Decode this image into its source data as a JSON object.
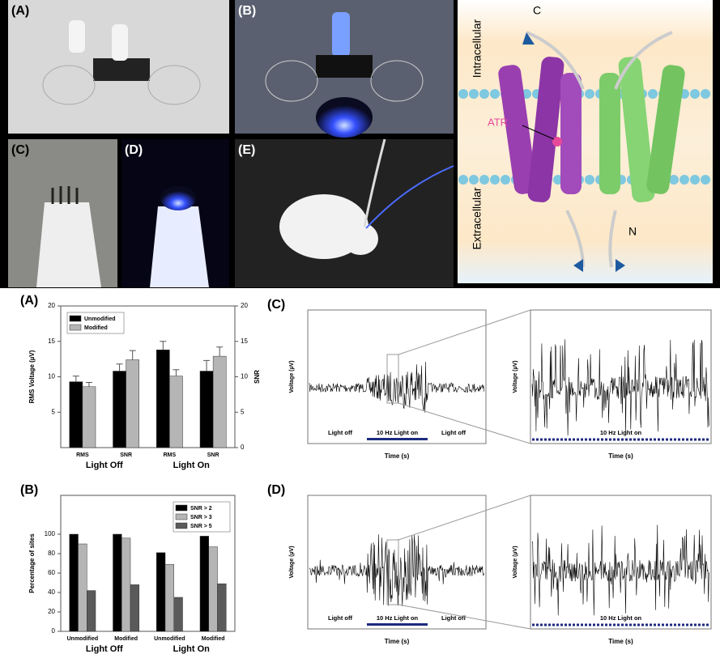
{
  "photos": {
    "labels": [
      "(A)",
      "(B)",
      "(C)",
      "(D)",
      "(E)"
    ]
  },
  "protein": {
    "c": "C",
    "intracellular": "Intracellular",
    "atr": "ATR",
    "extracellular": "Extracellular",
    "n": "N"
  },
  "chart_data": [
    {
      "type": "bar",
      "panel": "(A)",
      "ylabel": "RMS Voltage (µV)",
      "y2label": "SNR",
      "categories": [
        "RMS",
        "SNR",
        "RMS",
        "SNR"
      ],
      "groups": [
        "Light Off",
        "Light On"
      ],
      "series": [
        {
          "name": "Unmodified",
          "color": "#000000",
          "values": [
            9.3,
            10.8,
            13.8,
            10.8
          ],
          "errors": [
            0.8,
            1.0,
            1.2,
            1.5
          ]
        },
        {
          "name": "Modified",
          "color": "#b5b5b5",
          "values": [
            8.6,
            12.4,
            10.1,
            12.9
          ],
          "errors": [
            0.6,
            1.3,
            0.9,
            1.3
          ]
        }
      ],
      "ylim": [
        0,
        20
      ],
      "yticks": [
        5,
        10,
        15,
        20
      ],
      "y2lim": [
        0,
        20
      ],
      "y2ticks": [
        0,
        5,
        10,
        15,
        20
      ],
      "legend": "upper left"
    },
    {
      "type": "bar",
      "panel": "(B)",
      "ylabel": "Percentage of sites",
      "categories": [
        "Unmodified",
        "Modified",
        "Unmodified",
        "Modified"
      ],
      "groups": [
        "Light Off",
        "Light On"
      ],
      "series": [
        {
          "name": "SNR > 2",
          "color": "#000000",
          "values": [
            100,
            100,
            81,
            98
          ]
        },
        {
          "name": "SNR > 3",
          "color": "#b5b5b5",
          "values": [
            90,
            96,
            69,
            87
          ]
        },
        {
          "name": "SNR > 5",
          "color": "#5a5a5a",
          "values": [
            42,
            48,
            35,
            49
          ]
        }
      ],
      "ylim": [
        0,
        140
      ],
      "yticks": [
        0,
        20,
        40,
        60,
        80,
        100
      ],
      "legend": "upper right"
    }
  ],
  "recordings": [
    {
      "panel": "(C)",
      "ylabel": "Voltage (µV)",
      "xlabel": "Time (s)",
      "annotations": [
        "Light off",
        "10 Hz Light on",
        "Light off"
      ],
      "zoom_ylabel": "Voltage (µV)",
      "zoom_xlabel": "Time (s)",
      "zoom_annotation": "10 Hz Light on"
    },
    {
      "panel": "(D)",
      "ylabel": "Voltage (µV)",
      "xlabel": "Time (s)",
      "annotations": [
        "Light off",
        "10 Hz Light on",
        "Light off"
      ],
      "zoom_ylabel": "Voltage (µV)",
      "zoom_xlabel": "Time (s)",
      "zoom_annotation": "10 Hz Light on"
    }
  ]
}
